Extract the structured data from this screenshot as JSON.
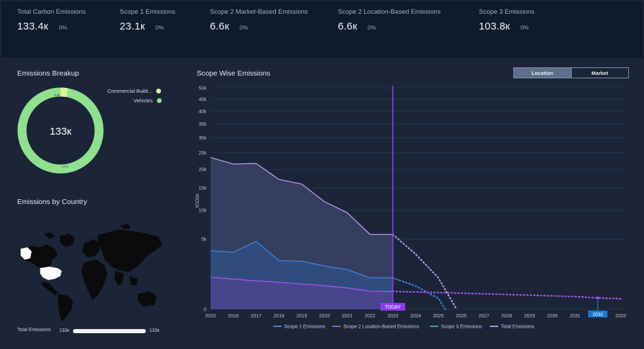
{
  "kpis": [
    {
      "label": "Total Carbon Emissions",
      "value": "133.4к",
      "change": "0%"
    },
    {
      "label": "Scope 1 Emissions",
      "value": "23.1к",
      "change": "0%"
    },
    {
      "label": "Scope 2 Market-Based Emissions",
      "value": "6.6к",
      "change": "0%"
    },
    {
      "label": "Scope 2 Location-Based Emissions",
      "value": "6.6к",
      "change": "0%"
    },
    {
      "label": "Scope 3 Emissions",
      "value": "103.8к",
      "change": "0%"
    }
  ],
  "breakup": {
    "title": "Emissions Breakup",
    "center_value": "133к",
    "segments": [
      {
        "name": "Commercial Build...",
        "value": 6.6,
        "label": "6.6к",
        "color": "#dff09a"
      },
      {
        "name": "Vehicles",
        "value": 127,
        "label": "127к",
        "color": "#8fe08f"
      }
    ]
  },
  "country": {
    "title": "Emissions by Country",
    "total_label": "Total Emissions",
    "min": "133к",
    "max": "133к"
  },
  "scope": {
    "title": "Scope Wise Emissions",
    "toggle": {
      "location": "Location",
      "market": "Market",
      "selected": "Location"
    },
    "today_label": "TODAY",
    "highlight_year": "2032"
  },
  "chart_data": {
    "type": "area",
    "title": "Scope Wise Emissions",
    "ylabel": "tCO2e",
    "x_labels": [
      "2015",
      "2016",
      "2017",
      "2018",
      "2019",
      "2020",
      "2021",
      "2022",
      "2023",
      "2024",
      "2025",
      "2026",
      "2027",
      "2028",
      "2029",
      "2030",
      "2031",
      "2032",
      "2033"
    ],
    "y_ticks": [
      {
        "label": "0",
        "value": 0
      },
      {
        "label": "5k",
        "value": 5000
      },
      {
        "label": "10k",
        "value": 10000
      },
      {
        "label": "15k",
        "value": 15000
      },
      {
        "label": "20k",
        "value": 20000
      },
      {
        "label": "25k",
        "value": 25000
      },
      {
        "label": "30k",
        "value": 30000
      },
      {
        "label": "35k",
        "value": 35000
      },
      {
        "label": "40k",
        "value": 40000
      },
      {
        "label": "45k",
        "value": 45000
      },
      {
        "label": "50k",
        "value": 50000
      }
    ],
    "scale": "sqrt",
    "ylim": [
      0,
      50000
    ],
    "today": "2023",
    "series": [
      {
        "name": "Scope 1 Emissions",
        "color": "#3f7fd9",
        "actual": [
          [
            "2015",
            3500
          ],
          [
            "2016",
            3300
          ],
          [
            "2017",
            4700
          ],
          [
            "2018",
            2400
          ],
          [
            "2019",
            2350
          ],
          [
            "2020",
            1900
          ],
          [
            "2021",
            1600
          ],
          [
            "2022",
            1000
          ],
          [
            "2023",
            1000
          ]
        ],
        "forecast": [
          [
            "2023",
            1000
          ],
          [
            "2024",
            550
          ],
          [
            "2025",
            120
          ],
          [
            "2025.3",
            0
          ]
        ]
      },
      {
        "name": "Scope 2 Location-Based Emissions",
        "color": "#9b57e6",
        "actual": [
          [
            "2015",
            1050
          ],
          [
            "2016",
            920
          ],
          [
            "2017",
            820
          ],
          [
            "2018",
            740
          ],
          [
            "2019",
            650
          ],
          [
            "2020",
            560
          ],
          [
            "2021",
            460
          ],
          [
            "2022",
            330
          ],
          [
            "2023",
            320
          ]
        ],
        "forecast": [
          [
            "2023",
            320
          ],
          [
            "2025",
            280
          ],
          [
            "2027",
            240
          ],
          [
            "2029",
            200
          ],
          [
            "2031",
            160
          ],
          [
            "2032",
            130
          ],
          [
            "2033",
            110
          ]
        ]
      },
      {
        "name": "Scope 3 Emissions",
        "color": "#2fa6a0",
        "actual": [],
        "forecast": []
      },
      {
        "name": "Total Emissions",
        "color": "#b592ea",
        "actual": [
          [
            "2015",
            23500
          ],
          [
            "2016",
            21500
          ],
          [
            "2017",
            21700
          ],
          [
            "2018",
            17200
          ],
          [
            "2019",
            16000
          ],
          [
            "2020",
            11800
          ],
          [
            "2021",
            9500
          ],
          [
            "2022",
            5700
          ],
          [
            "2023",
            5700
          ]
        ],
        "forecast": [
          [
            "2023",
            5700
          ],
          [
            "2024",
            3100
          ],
          [
            "2025",
            1000
          ],
          [
            "2025.8",
            0
          ]
        ]
      }
    ]
  }
}
